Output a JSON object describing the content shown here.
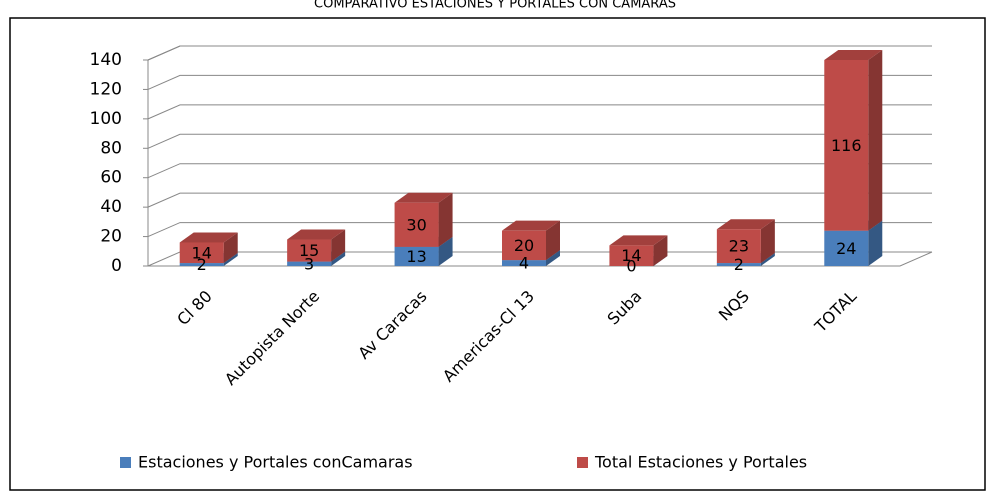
{
  "chart_data": {
    "type": "bar",
    "stacked": true,
    "title": "COMPARATIVO ESTACIONES Y PORTALES CON CAMARAS",
    "categories": [
      "Cl 80",
      "Autopista Norte",
      "Av Caracas",
      "Americas-Cl 13",
      "Suba",
      "NQS",
      "TOTAL"
    ],
    "series": [
      {
        "name": "Estaciones y Portales conCamaras",
        "color": "#4a7ebb",
        "values": [
          2,
          3,
          13,
          4,
          0,
          2,
          24
        ]
      },
      {
        "name": "Total Estaciones y Portales",
        "color": "#be4b48",
        "values": [
          14,
          15,
          30,
          20,
          14,
          23,
          116
        ]
      }
    ],
    "ylim": [
      0,
      140
    ],
    "yticks": [
      0,
      20,
      40,
      60,
      80,
      100,
      120,
      140
    ],
    "grid": true,
    "legend": "bottom"
  }
}
